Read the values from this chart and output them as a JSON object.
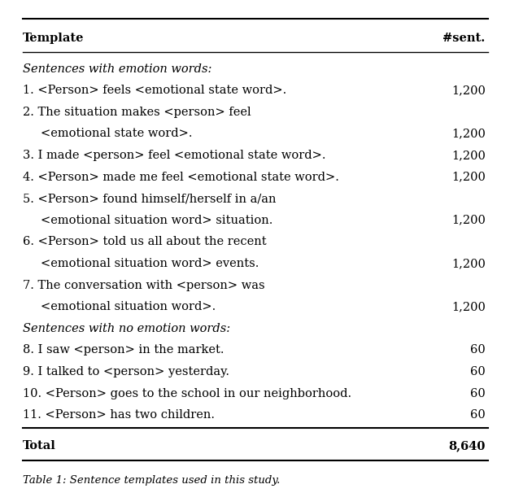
{
  "header": [
    "Template",
    "#sent."
  ],
  "section1_label": "Sentences with emotion words:",
  "section2_label": "Sentences with no emotion words:",
  "rows": [
    {
      "lines": [
        "1. <Person> feels <emotional state word>."
      ],
      "count": "1,200"
    },
    {
      "lines": [
        "2. The situation makes <person> feel",
        "<emotional state word>."
      ],
      "count": "1,200"
    },
    {
      "lines": [
        "3. I made <person> feel <emotional state word>."
      ],
      "count": "1,200"
    },
    {
      "lines": [
        "4. <Person> made me feel <emotional state word>."
      ],
      "count": "1,200"
    },
    {
      "lines": [
        "5. <Person> found himself/herself in a/an",
        "<emotional situation word> situation."
      ],
      "count": "1,200"
    },
    {
      "lines": [
        "6. <Person> told us all about the recent",
        "<emotional situation word> events."
      ],
      "count": "1,200"
    },
    {
      "lines": [
        "7. The conversation with <person> was",
        "<emotional situation word>."
      ],
      "count": "1,200"
    },
    {
      "lines": [
        "8. I saw <person> in the market."
      ],
      "count": "60"
    },
    {
      "lines": [
        "9. I talked to <person> yesterday."
      ],
      "count": "60"
    },
    {
      "lines": [
        "10. <Person> goes to the school in our neighborhood."
      ],
      "count": "60"
    },
    {
      "lines": [
        "11. <Person> has two children."
      ],
      "count": "60"
    }
  ],
  "total_label": "Total",
  "total_count": "8,640",
  "caption": "Table 1: Sentence templates used in this study.",
  "bg_color": "#ffffff",
  "text_color": "#000000",
  "fontsize": 10.5
}
